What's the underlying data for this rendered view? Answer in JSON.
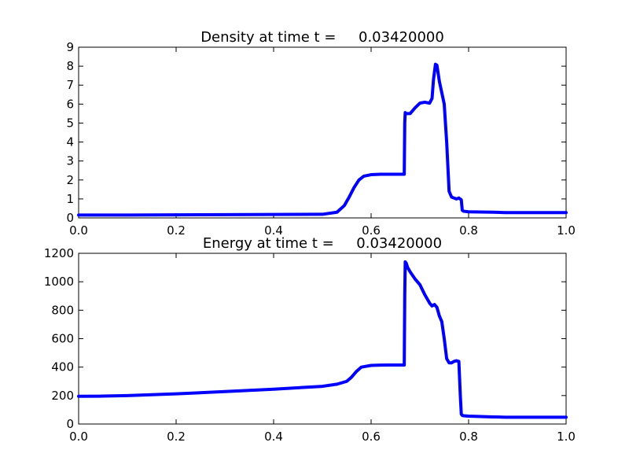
{
  "chart_data": [
    {
      "type": "line",
      "title": "Density at time t =     0.03420000",
      "xlabel": "",
      "ylabel": "",
      "xlim": [
        0,
        1
      ],
      "ylim": [
        0,
        9
      ],
      "xticks": [
        "0.0",
        "0.2",
        "0.4",
        "0.6",
        "0.8",
        "1.0"
      ],
      "yticks": [
        "0",
        "1",
        "2",
        "3",
        "4",
        "5",
        "6",
        "7",
        "8",
        "9"
      ],
      "grid": false,
      "color": "#0000ff",
      "series": [
        {
          "x": [
            0,
            0.1,
            0.2,
            0.3,
            0.4,
            0.5,
            0.53,
            0.545,
            0.555,
            0.565,
            0.575,
            0.585,
            0.6,
            0.62,
            0.64,
            0.665,
            0.668,
            0.669,
            0.67,
            0.672,
            0.68,
            0.69,
            0.7,
            0.71,
            0.72,
            0.725,
            0.728,
            0.732,
            0.735,
            0.74,
            0.745,
            0.75,
            0.755,
            0.76,
            0.765,
            0.77,
            0.775,
            0.78,
            0.785,
            0.787,
            0.79,
            0.8,
            0.85,
            0.875,
            0.9,
            1.0
          ],
          "y": [
            0.15,
            0.15,
            0.16,
            0.17,
            0.18,
            0.19,
            0.3,
            0.65,
            1.1,
            1.6,
            2.0,
            2.2,
            2.28,
            2.3,
            2.3,
            2.3,
            2.3,
            5.0,
            5.55,
            5.5,
            5.5,
            5.8,
            6.05,
            6.1,
            6.05,
            6.3,
            7.3,
            8.1,
            8.05,
            7.2,
            6.6,
            6.0,
            4.0,
            1.4,
            1.1,
            1.05,
            1.0,
            1.05,
            0.95,
            0.4,
            0.35,
            0.32,
            0.3,
            0.28,
            0.28,
            0.28
          ]
        }
      ]
    },
    {
      "type": "line",
      "title": "Energy at time t =     0.03420000",
      "xlabel": "",
      "ylabel": "",
      "xlim": [
        0,
        1
      ],
      "ylim": [
        0,
        1200
      ],
      "xticks": [
        "0.0",
        "0.2",
        "0.4",
        "0.6",
        "0.8",
        "1.0"
      ],
      "yticks": [
        "0",
        "200",
        "400",
        "600",
        "800",
        "1000",
        "1200"
      ],
      "grid": false,
      "color": "#0000ff",
      "series": [
        {
          "x": [
            0,
            0.05,
            0.1,
            0.2,
            0.3,
            0.4,
            0.5,
            0.53,
            0.55,
            0.56,
            0.57,
            0.58,
            0.6,
            0.62,
            0.64,
            0.665,
            0.668,
            0.669,
            0.67,
            0.672,
            0.675,
            0.68,
            0.69,
            0.7,
            0.71,
            0.72,
            0.725,
            0.73,
            0.735,
            0.74,
            0.745,
            0.75,
            0.755,
            0.76,
            0.765,
            0.77,
            0.775,
            0.78,
            0.783,
            0.785,
            0.787,
            0.79,
            0.8,
            0.85,
            0.875,
            0.9,
            1.0
          ],
          "y": [
            195,
            196,
            200,
            212,
            228,
            245,
            265,
            280,
            300,
            330,
            370,
            400,
            412,
            414,
            415,
            415,
            415,
            900,
            1140,
            1130,
            1100,
            1070,
            1020,
            980,
            910,
            850,
            830,
            840,
            820,
            760,
            720,
            600,
            460,
            430,
            430,
            440,
            445,
            440,
            200,
            70,
            60,
            58,
            55,
            50,
            48,
            48,
            48
          ]
        }
      ]
    }
  ]
}
